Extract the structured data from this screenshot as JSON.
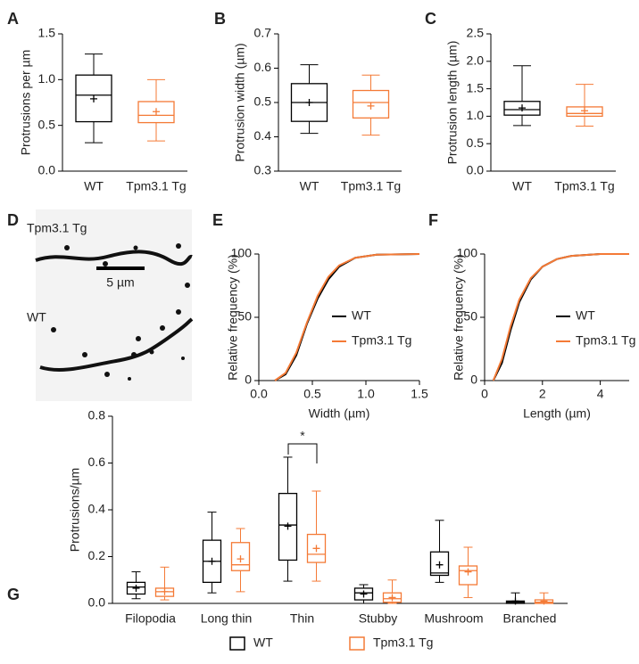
{
  "chart_data": [
    {
      "type": "box",
      "panel": "A",
      "ylabel": "Protrusions per µm",
      "categories": [
        "WT",
        "Tpm3.1 Tg"
      ],
      "colors": [
        "#000000",
        "#f47a36"
      ],
      "min": [
        0.31,
        0.33
      ],
      "q1": [
        0.54,
        0.53
      ],
      "median": [
        0.83,
        0.61
      ],
      "q3": [
        1.05,
        0.76
      ],
      "max": [
        1.28,
        1.0
      ],
      "mean": [
        0.79,
        0.65
      ],
      "ylim": [
        0,
        1.5
      ],
      "yticks": [
        {
          "value": 0,
          "label": "0.0"
        },
        0.5,
        {
          "value": 1,
          "label": "1.0"
        },
        1.5
      ]
    },
    {
      "type": "box",
      "panel": "B",
      "ylabel": "Protrusion width (µm)",
      "categories": [
        "WT",
        "Tpm3.1 Tg"
      ],
      "colors": [
        "#000000",
        "#f47a36"
      ],
      "min": [
        0.41,
        0.405
      ],
      "q1": [
        0.445,
        0.455
      ],
      "median": [
        0.5,
        0.5
      ],
      "q3": [
        0.555,
        0.535
      ],
      "max": [
        0.61,
        0.58
      ],
      "mean": [
        0.5,
        0.49
      ],
      "ylim": [
        0.3,
        0.7
      ],
      "yticks": [
        0.3,
        0.4,
        0.5,
        0.6,
        0.7
      ]
    },
    {
      "type": "box",
      "panel": "C",
      "ylabel": "Protrusion length (µm)",
      "categories": [
        "WT",
        "Tpm3.1 Tg"
      ],
      "colors": [
        "#000000",
        "#f47a36"
      ],
      "min": [
        0.83,
        0.82
      ],
      "q1": [
        1.02,
        1.0
      ],
      "median": [
        1.12,
        1.05
      ],
      "q3": [
        1.27,
        1.17
      ],
      "max": [
        1.92,
        1.58
      ],
      "mean": [
        1.15,
        1.1
      ],
      "ylim": [
        0,
        2.5
      ],
      "yticks": [
        {
          "value": 0,
          "label": "0.0"
        },
        0.5,
        {
          "value": 1,
          "label": "1.0"
        },
        1.5,
        {
          "value": 2,
          "label": "2.0"
        },
        2.5
      ]
    },
    {
      "type": "image",
      "panel": "D",
      "labels": [
        "Tpm3.1 Tg",
        "WT"
      ],
      "scale_bar": "5 µm"
    },
    {
      "type": "line",
      "panel": "E",
      "xlabel": "Width (µm)",
      "ylabel": "Relative frequency (%)",
      "x": [
        0.15,
        0.25,
        0.35,
        0.45,
        0.55,
        0.65,
        0.75,
        0.9,
        1.1,
        1.5
      ],
      "series": [
        {
          "name": "WT",
          "color": "#000000",
          "values": [
            0,
            5,
            20,
            45,
            65,
            80,
            90,
            97,
            99.5,
            100
          ]
        },
        {
          "name": "Tpm3.1 Tg",
          "color": "#f47a36",
          "values": [
            0,
            6,
            22,
            46,
            67,
            82,
            91,
            97,
            99.5,
            100
          ]
        }
      ],
      "xlim": [
        0,
        1.5
      ],
      "xticks": [
        {
          "value": 0,
          "label": "0.0"
        },
        0.5,
        {
          "value": 1,
          "label": "1.0"
        },
        1.5
      ],
      "ylim": [
        0,
        100
      ],
      "yticks": [
        0,
        50,
        100
      ]
    },
    {
      "type": "line",
      "panel": "F",
      "xlabel": "Length (µm)",
      "ylabel": "Relative frequency (%)",
      "x": [
        0.3,
        0.6,
        0.9,
        1.2,
        1.6,
        2,
        2.5,
        3,
        4,
        5
      ],
      "series": [
        {
          "name": "WT",
          "color": "#000000",
          "values": [
            0,
            14,
            40,
            62,
            80,
            90,
            96,
            98.5,
            100,
            100
          ]
        },
        {
          "name": "Tpm3.1 Tg",
          "color": "#f47a36",
          "values": [
            0,
            17,
            43,
            64,
            81,
            90,
            96,
            98.5,
            100,
            100
          ]
        }
      ],
      "xlim": [
        0,
        5
      ],
      "xticks": [
        0,
        2,
        4
      ],
      "ylim": [
        0,
        100
      ],
      "yticks": [
        0,
        50,
        100
      ]
    },
    {
      "type": "grouped-box",
      "panel": "G",
      "ylabel": "Protrusions/µm",
      "categories": [
        "Filopodia",
        "Long thin",
        "Thin",
        "Stubby",
        "Mushroom",
        "Branched"
      ],
      "series": [
        {
          "name": "WT",
          "color": "#000000",
          "min": [
            0.02,
            0.045,
            0.095,
            0.0,
            0.09,
            0.0
          ],
          "q1": [
            0.04,
            0.09,
            0.185,
            0.015,
            0.12,
            0.0
          ],
          "median": [
            0.07,
            0.18,
            0.335,
            0.045,
            0.13,
            0.005
          ],
          "q3": [
            0.09,
            0.27,
            0.47,
            0.065,
            0.22,
            0.01
          ],
          "max": [
            0.135,
            0.39,
            0.625,
            0.08,
            0.355,
            0.045
          ],
          "mean": [
            0.065,
            0.18,
            0.33,
            0.04,
            0.165,
            0.01
          ]
        },
        {
          "name": "Tpm3.1 Tg",
          "color": "#f47a36",
          "min": [
            0.015,
            0.05,
            0.095,
            0.0,
            0.025,
            0.0
          ],
          "q1": [
            0.03,
            0.14,
            0.175,
            0.005,
            0.08,
            0.0
          ],
          "median": [
            0.05,
            0.165,
            0.21,
            0.02,
            0.14,
            0.005
          ],
          "q3": [
            0.065,
            0.26,
            0.295,
            0.045,
            0.16,
            0.015
          ],
          "max": [
            0.155,
            0.32,
            0.48,
            0.1,
            0.24,
            0.045
          ],
          "mean": [
            0.05,
            0.19,
            0.235,
            0.025,
            0.135,
            0.01
          ]
        }
      ],
      "ylim": [
        0,
        0.8
      ],
      "yticks": [
        {
          "value": 0,
          "label": "0.0"
        },
        0.2,
        0.4,
        0.6,
        0.8
      ],
      "annotations": [
        "*"
      ]
    }
  ]
}
